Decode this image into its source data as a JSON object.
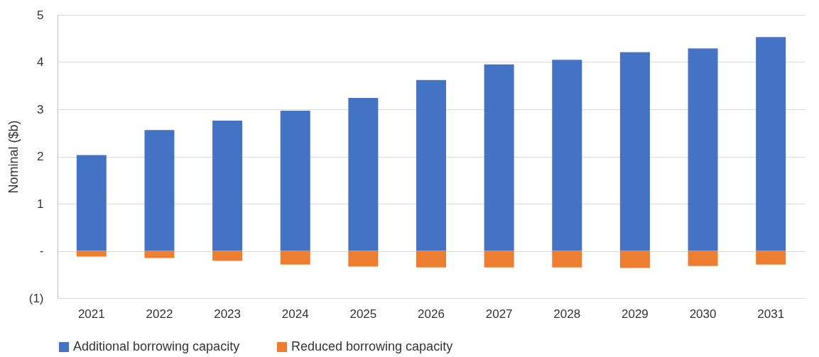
{
  "chart_data": {
    "type": "bar",
    "ylabel": "Nominal ($b)",
    "categories": [
      "2021",
      "2022",
      "2023",
      "2024",
      "2025",
      "2026",
      "2027",
      "2028",
      "2029",
      "2030",
      "2031"
    ],
    "series": [
      {
        "name": "Additional borrowing capacity",
        "color": "#4472c4",
        "values": [
          2.03,
          2.56,
          2.76,
          2.97,
          3.24,
          3.62,
          3.95,
          4.05,
          4.21,
          4.29,
          4.53
        ]
      },
      {
        "name": "Reduced borrowing capacity",
        "color": "#ed7d31",
        "values": [
          -0.12,
          -0.15,
          -0.21,
          -0.29,
          -0.33,
          -0.35,
          -0.35,
          -0.35,
          -0.36,
          -0.32,
          -0.29
        ]
      }
    ],
    "stacked": true,
    "ylim": [
      -1,
      5
    ],
    "yticks": [
      {
        "value": -1,
        "label": "(1)"
      },
      {
        "value": 0,
        "label": "-"
      },
      1,
      2,
      3,
      4,
      5
    ],
    "grid": "y",
    "legend": "bottom"
  }
}
